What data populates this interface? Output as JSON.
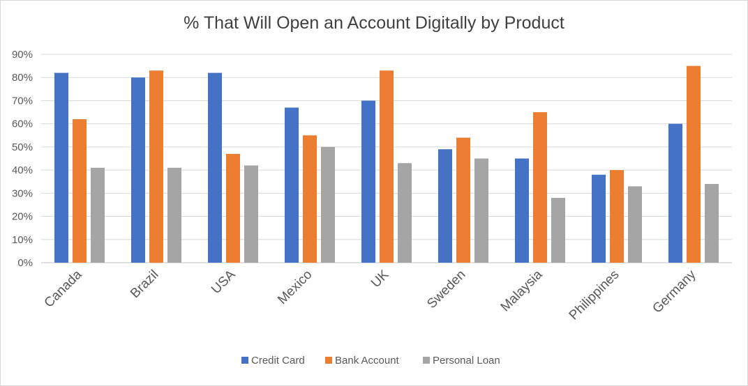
{
  "chart_data": {
    "type": "bar",
    "title": "% That Will Open an Account Digitally by Product",
    "xlabel": "",
    "ylabel": "",
    "categories": [
      "Canada",
      "Brazil",
      "USA",
      "Mexico",
      "UK",
      "Sweden",
      "Malaysia",
      "Philippines",
      "Germany"
    ],
    "series": [
      {
        "name": "Credit Card",
        "color": "#4472c4",
        "values": [
          82,
          80,
          82,
          67,
          70,
          49,
          45,
          38,
          60
        ]
      },
      {
        "name": "Bank Account",
        "color": "#ed7d31",
        "values": [
          62,
          83,
          47,
          55,
          83,
          54,
          65,
          40,
          85
        ]
      },
      {
        "name": "Personal Loan",
        "color": "#a5a5a5",
        "values": [
          41,
          41,
          42,
          50,
          43,
          45,
          28,
          33,
          34
        ]
      }
    ],
    "ylim": [
      0,
      90
    ],
    "yticks": [
      "0%",
      "10%",
      "20%",
      "30%",
      "40%",
      "50%",
      "60%",
      "70%",
      "80%",
      "90%"
    ],
    "grid": true,
    "legend": "bottom"
  }
}
